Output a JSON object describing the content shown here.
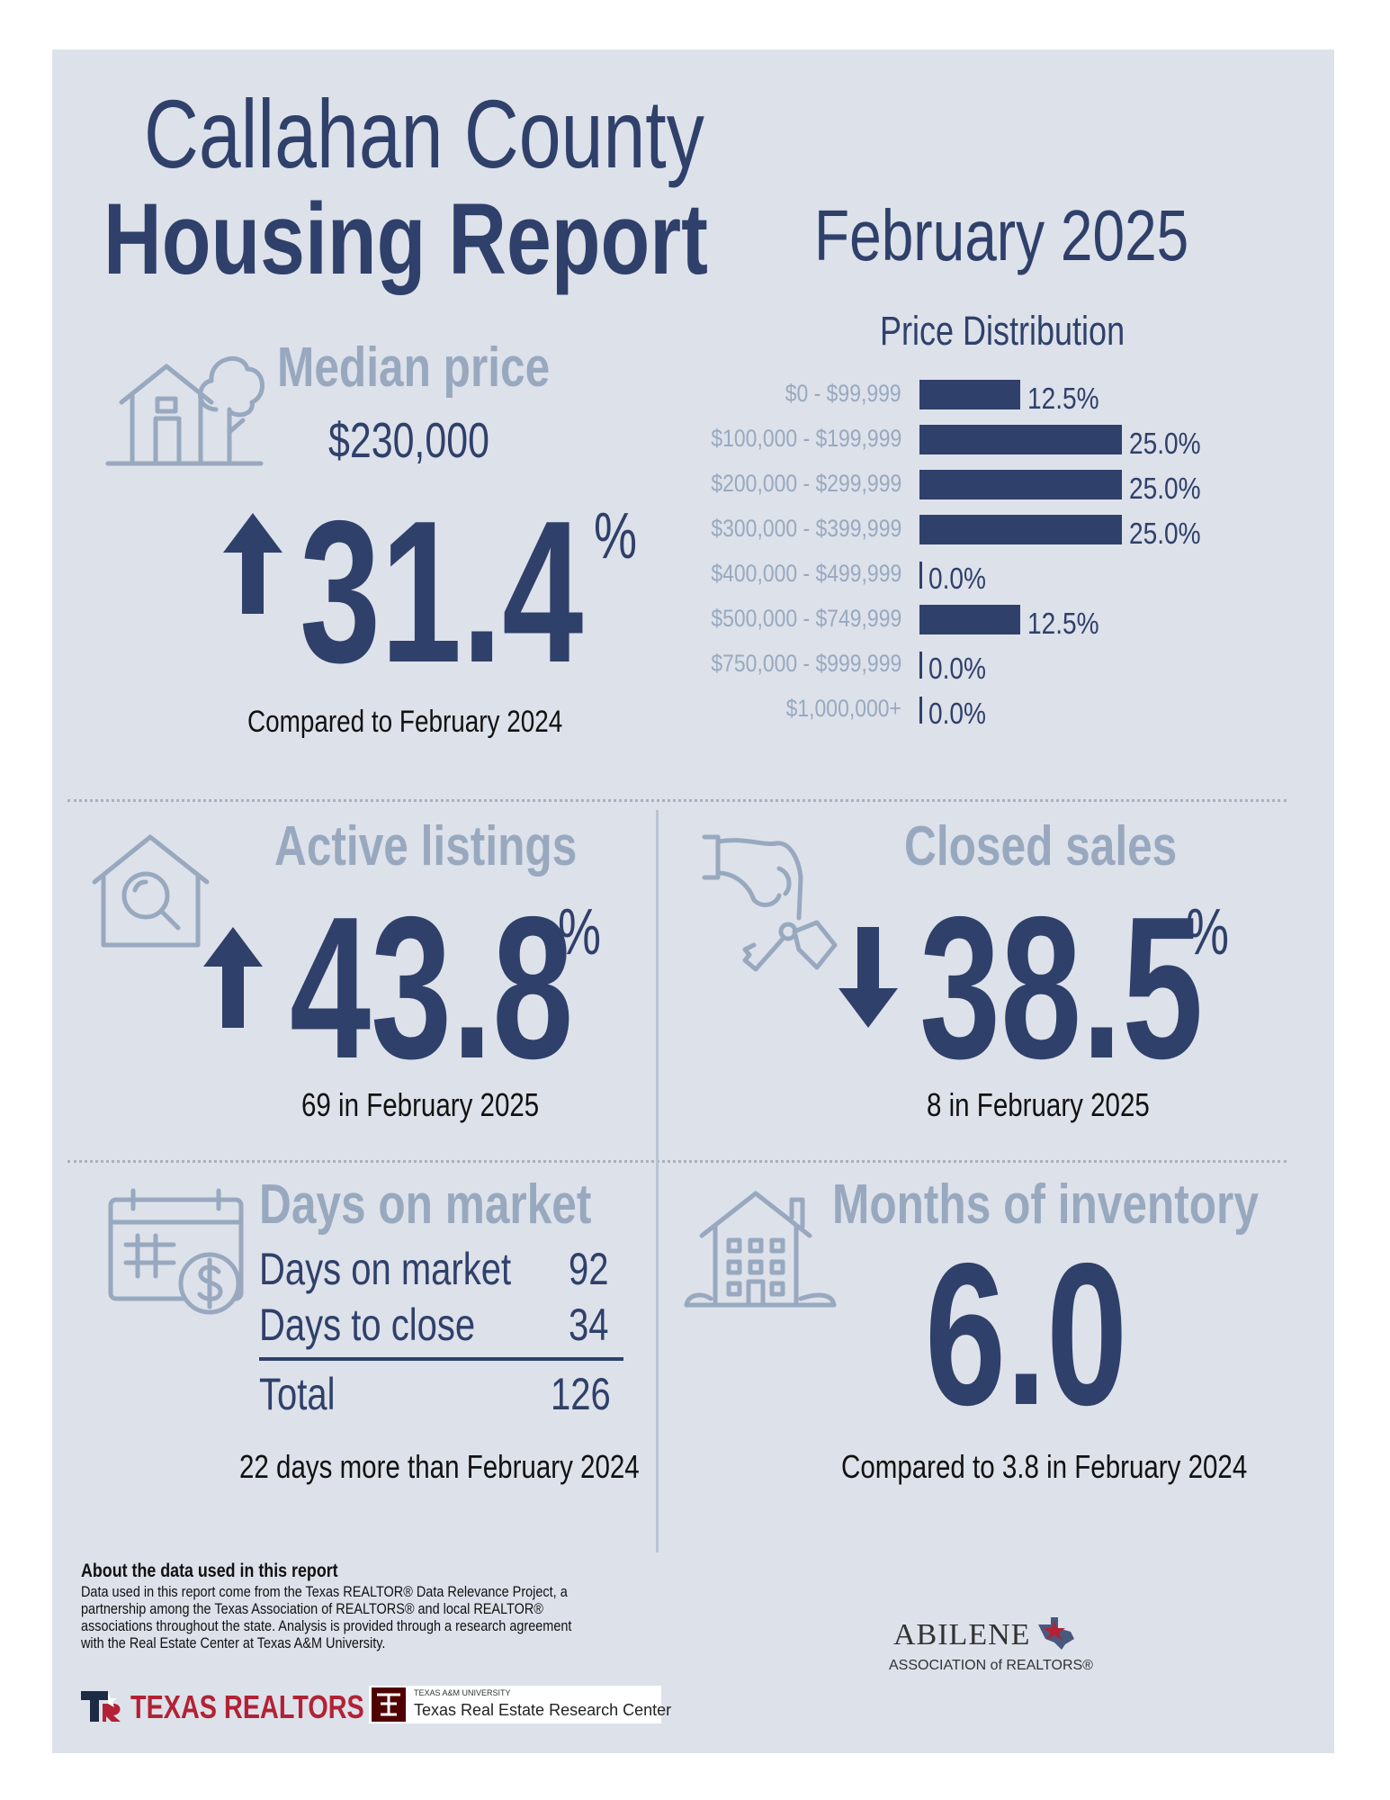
{
  "header": {
    "title_line1": "Callahan County",
    "title_line2": "Housing Report",
    "period": "February 2025"
  },
  "median_price": {
    "label": "Median price",
    "value": "$230,000",
    "change": "31.4",
    "percent_sign": "%",
    "direction": "up",
    "comparison": "Compared to February 2024"
  },
  "price_distribution": {
    "title": "Price Distribution",
    "rows": [
      {
        "range": "$0 - $99,999",
        "percent": "12.5%"
      },
      {
        "range": "$100,000 - $199,999",
        "percent": "25.0%"
      },
      {
        "range": "$200,000 - $299,999",
        "percent": "25.0%"
      },
      {
        "range": "$300,000 - $399,999",
        "percent": "25.0%"
      },
      {
        "range": "$400,000 - $499,999",
        "percent": "0.0%"
      },
      {
        "range": "$500,000 - $749,999",
        "percent": "12.5%"
      },
      {
        "range": "$750,000 - $999,999",
        "percent": "0.0%"
      },
      {
        "range": "$1,000,000+",
        "percent": "0.0%"
      }
    ]
  },
  "active_listings": {
    "label": "Active listings",
    "change": "43.8",
    "percent_sign": "%",
    "direction": "up",
    "detail": "69 in February 2025"
  },
  "closed_sales": {
    "label": "Closed sales",
    "change": "38.5",
    "percent_sign": "%",
    "direction": "down",
    "detail": "8 in February 2025"
  },
  "days_on_market": {
    "label": "Days on market",
    "rows": [
      {
        "name": "Days on market",
        "value": "92"
      },
      {
        "name": "Days to close",
        "value": "34"
      }
    ],
    "total_label": "Total",
    "total_value": "126",
    "comparison": "22 days more than February 2024"
  },
  "months_inventory": {
    "label": "Months of inventory",
    "value": "6.0",
    "comparison": "Compared to 3.8 in February 2024"
  },
  "footer": {
    "about_title": "About the data used in this report",
    "about_lines": [
      "Data used in this report come from the Texas REALTOR® Data Relevance Project, a",
      "partnership among the Texas Association of REALTORS® and local REALTOR®",
      "associations throughout the state. Analysis is provided through a research agreement",
      "with the Real Estate Center at Texas A&M University."
    ],
    "texas_realtors_logo": "TEXAS REALTORS",
    "tamu_small": "TEXAS A&M UNIVERSITY",
    "tamu_center": "Texas Real Estate Research Center",
    "abilene_line1": "ABILENE",
    "abilene_line2": "ASSOCIATION of REALTORS®"
  },
  "colors": {
    "navy": "#2f406a",
    "light": "#98a9bf",
    "panel": "#dde1ea",
    "texas_red": "#b22234"
  }
}
